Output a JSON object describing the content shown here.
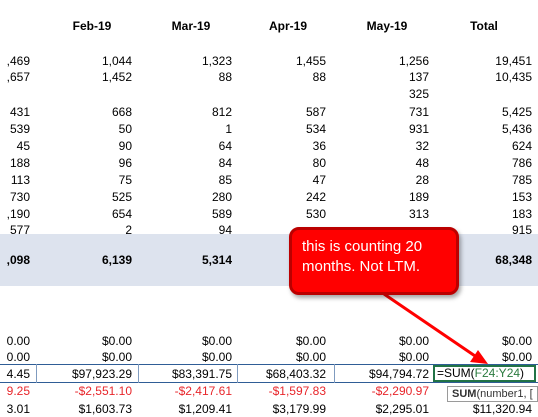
{
  "header": {
    "left": "",
    "feb": "Feb-19",
    "mar": "Mar-19",
    "apr": "Apr-19",
    "may": "May-19",
    "total": "Total"
  },
  "rows": [
    {
      "c0": ",469",
      "c1": "1,044",
      "c2": "1,323",
      "c3": "1,455",
      "c4": "1,256",
      "c5": "19,451"
    },
    {
      "c0": ",657",
      "c1": "1,452",
      "c2": "88",
      "c3": "88",
      "c4": "137",
      "c5": "10,435"
    },
    {
      "c0": "",
      "c1": "",
      "c2": "",
      "c3": "",
      "c4": "325",
      "c5": ""
    },
    {
      "c0": "431",
      "c1": "668",
      "c2": "812",
      "c3": "587",
      "c4": "731",
      "c5": "5,425"
    },
    {
      "c0": "539",
      "c1": "50",
      "c2": "1",
      "c3": "534",
      "c4": "931",
      "c5": "5,436"
    },
    {
      "c0": "45",
      "c1": "90",
      "c2": "64",
      "c3": "36",
      "c4": "32",
      "c5": "624"
    },
    {
      "c0": "188",
      "c1": "96",
      "c2": "84",
      "c3": "80",
      "c4": "48",
      "c5": "786"
    },
    {
      "c0": "113",
      "c1": "75",
      "c2": "85",
      "c3": "47",
      "c4": "28",
      "c5": "785"
    },
    {
      "c0": "730",
      "c1": "525",
      "c2": "280",
      "c3": "242",
      "c4": "189",
      "c5": "153"
    },
    {
      "c0": ",190",
      "c1": "654",
      "c2": "589",
      "c3": "530",
      "c4": "313",
      "c5": "183"
    },
    {
      "c0": "577",
      "c1": "2",
      "c2": "94",
      "c3": "",
      "c4": "",
      "c5": "915"
    }
  ],
  "total_row": {
    "c0": ",098",
    "c1": "6,139",
    "c2": "5,314",
    "c3": "",
    "c4": "",
    "c5": "68,348"
  },
  "dollar_rows": [
    {
      "c0": "0.00",
      "c1": "$0.00",
      "c2": "$0.00",
      "c3": "$0.00",
      "c4": "$0.00",
      "c5": "$0.00"
    },
    {
      "c0": "0.00",
      "c1": "$0.00",
      "c2": "$0.00",
      "c3": "$0.00",
      "c4": "$0.00",
      "c5": "$0.00"
    }
  ],
  "selected_row": {
    "c0": "4.45",
    "c1": "$97,923.29",
    "c2": "$83,391.75",
    "c3": "$68,403.32",
    "c4": "$94,794.72"
  },
  "formula": {
    "prefix": "=SUM(",
    "ref": "F24:Y24",
    "suffix": ")"
  },
  "tooltip": {
    "fn": "SUM",
    "args": "(number1, ["
  },
  "red_row": {
    "c0": "9.25",
    "c1": "-$2,551.10",
    "c2": "-$2,417.61",
    "c3": "-$1,597.83",
    "c4": "-$2,290.97"
  },
  "last_row": {
    "c0": "3.01",
    "c1": "$1,603.73",
    "c2": "$1,209.41",
    "c3": "$3,179.99",
    "c4": "$2,295.01",
    "c5": "$11,320.94"
  },
  "callout": {
    "text": "this is counting 20 months. Not LTM."
  },
  "colors": {
    "callout": "#ff0000",
    "band": "#dde3ee",
    "negative": "#e8262b",
    "selection": "#2f5d96"
  }
}
